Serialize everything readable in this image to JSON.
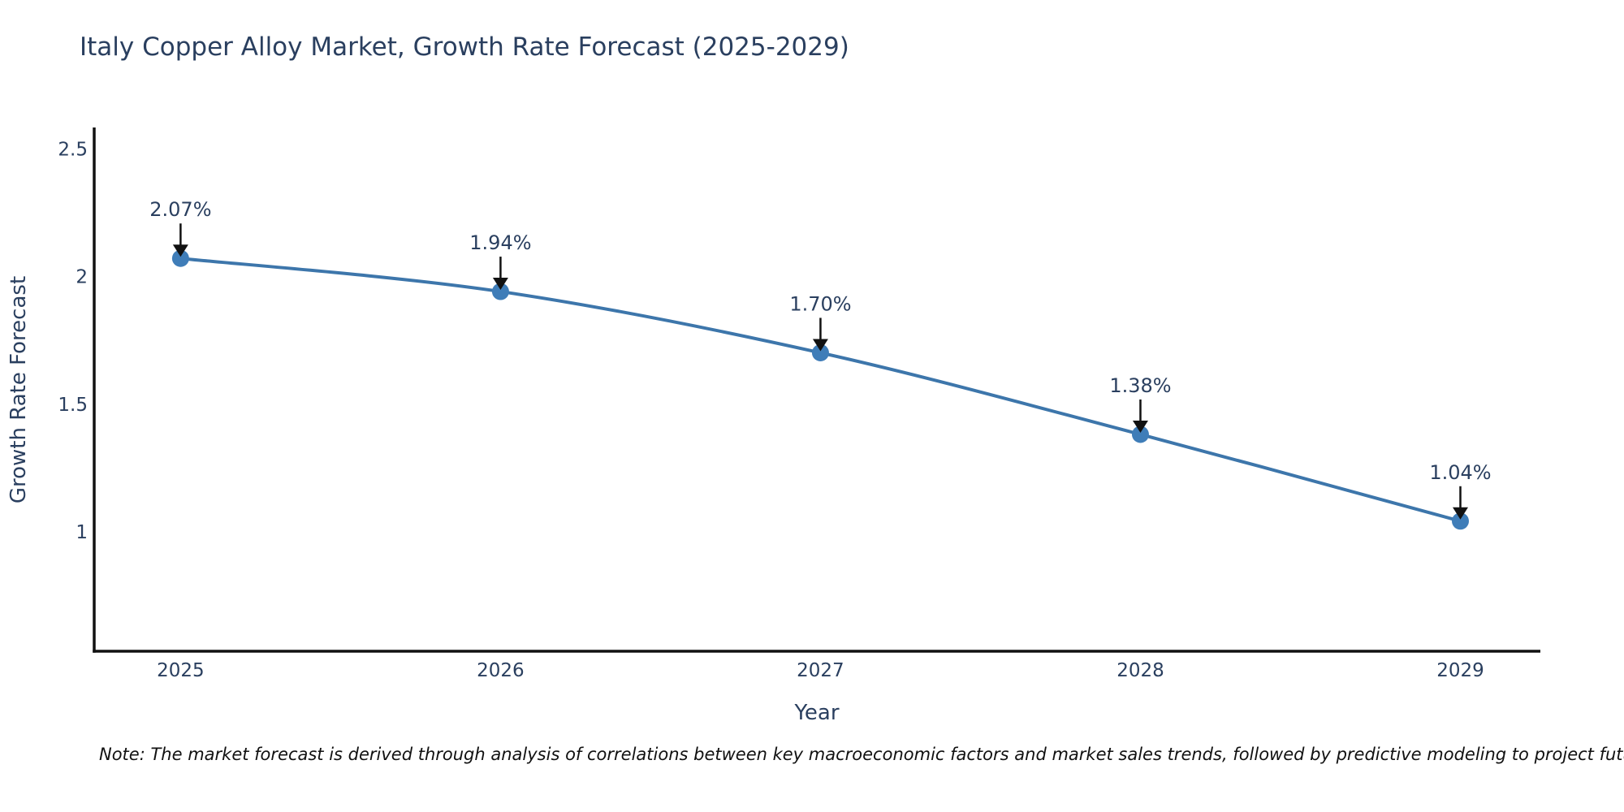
{
  "page": {
    "background": "#ffffff"
  },
  "chart": {
    "title": "Italy Copper Alloy Market, Growth Rate Forecast (2025-2029)",
    "xlabel": "Year",
    "ylabel": "Growth Rate Forecast"
  },
  "note": {
    "text": "Note: The market forecast is derived through analysis of correlations between key macroeconomic factors and market sales trends, followed by predictive modeling to project future sales"
  },
  "chart_data": {
    "type": "line",
    "title": "Italy Copper Alloy Market, Growth Rate Forecast (2025-2029)",
    "xlabel": "Year",
    "ylabel": "Growth Rate Forecast",
    "x": [
      2025,
      2026,
      2027,
      2028,
      2029
    ],
    "y": [
      2.07,
      1.94,
      1.7,
      1.38,
      1.04
    ],
    "point_labels": [
      "2.07%",
      "1.94%",
      "1.70%",
      "1.38%",
      "1.04%"
    ],
    "x_tick_labels": [
      "2025",
      "2026",
      "2027",
      "2028",
      "2029"
    ],
    "y_ticks": [
      1,
      1.5,
      2,
      2.5
    ],
    "y_tick_labels": [
      "1",
      "1.5",
      "2",
      "2.5"
    ],
    "xlim": [
      2024.73,
      2029.25
    ],
    "ylim": [
      0.53,
      2.58
    ],
    "line_shape": "spline",
    "grid": false,
    "legend": false,
    "annotations_have_arrows": true,
    "line_color": "#3d76ab",
    "marker_color": "#3f7db8",
    "text_color": "#2a3f5f",
    "axis_line_color": "#111111",
    "arrow_color": "#111111"
  }
}
